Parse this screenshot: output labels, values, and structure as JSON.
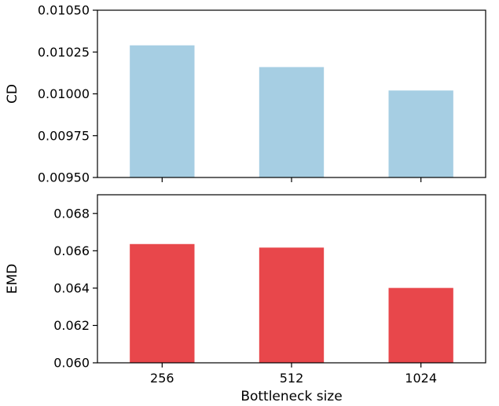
{
  "chart_data": [
    {
      "type": "bar",
      "categories": [
        "256",
        "512",
        "1024"
      ],
      "values": [
        0.01029,
        0.01016,
        0.01002
      ],
      "ylabel": "CD",
      "xlabel": "",
      "ylim": [
        0.0095,
        0.0105
      ],
      "yticks": [
        "0.00950",
        "0.00975",
        "0.01000",
        "0.01025",
        "0.01050"
      ],
      "color": "#a6cee3",
      "grid": false
    },
    {
      "type": "bar",
      "categories": [
        "256",
        "512",
        "1024"
      ],
      "values": [
        0.06636,
        0.06617,
        0.06401
      ],
      "ylabel": "EMD",
      "xlabel": "Bottleneck size",
      "ylim": [
        0.06,
        0.069
      ],
      "yticks": [
        "0.060",
        "0.062",
        "0.064",
        "0.066",
        "0.068"
      ],
      "color": "#e8474b",
      "grid": false
    }
  ]
}
